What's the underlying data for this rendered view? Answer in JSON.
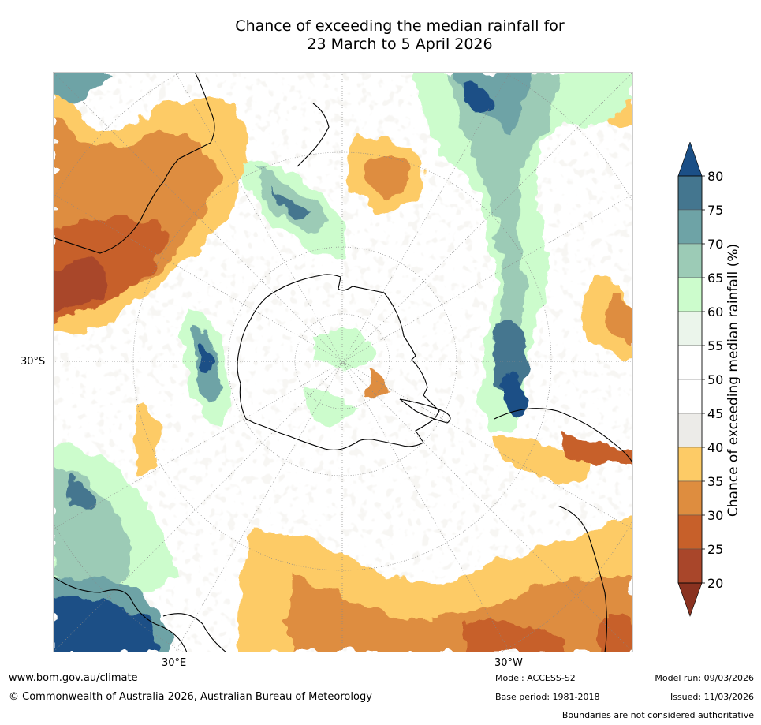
{
  "title_line1": "Chance of exceeding the median rainfall for",
  "title_line2": "23 March to 5 April 2026",
  "lat_label": "30°S",
  "lon_label_east": "30°E",
  "lon_label_west": "30°W",
  "colorbar": {
    "title": "Chance of exceeding median rainfall (%)",
    "ticks": [
      "80",
      "75",
      "70",
      "65",
      "60",
      "55",
      "50",
      "45",
      "40",
      "35",
      "30",
      "25",
      "20"
    ],
    "colors": [
      "#1b4f86",
      "#44768f",
      "#6ea3a6",
      "#9ccbb6",
      "#ccfccc",
      "#ebf5eb",
      "#ffffff",
      "#ffffff",
      "#ecebe8",
      "#fdcb66",
      "#de8d3f",
      "#c7602a",
      "#a9462a",
      "#8a3220"
    ]
  },
  "footer": {
    "website": "www.bom.gov.au/climate",
    "copyright": "© Commonwealth of Australia 2026, Australian Bureau of Meteorology",
    "model": "Model: ACCESS-S2",
    "base_period": "Base period: 1981-2018",
    "model_run": "Model run: 09/03/2026",
    "issued": "Issued: 11/03/2026",
    "disclaimer": "Boundaries are not considered authoritative"
  }
}
